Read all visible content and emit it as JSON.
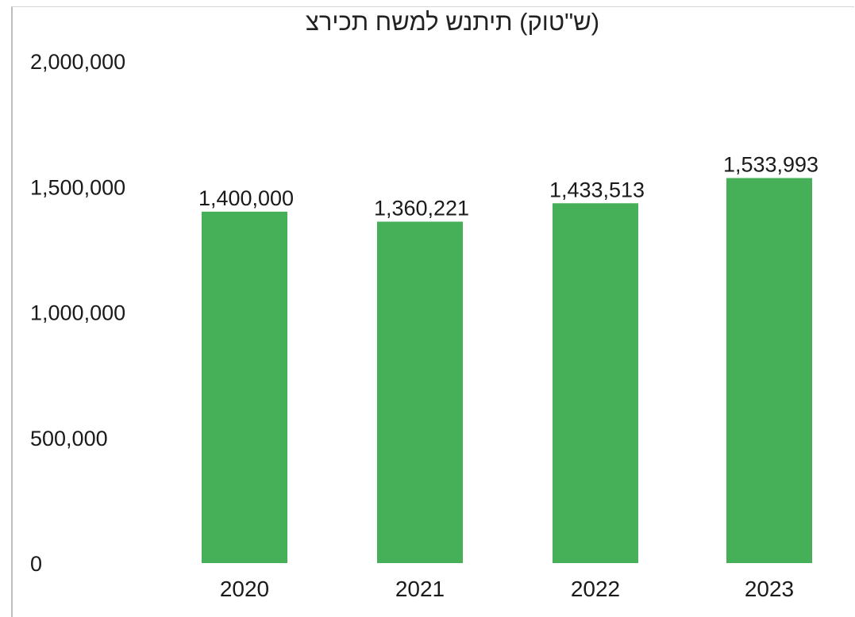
{
  "chart_data": {
    "type": "bar",
    "title": "(ש\"טוק) תיתנש למשח תכירצ",
    "categories": [
      "2020",
      "2021",
      "2022",
      "2023"
    ],
    "series": [
      {
        "values": [
          1400000,
          1360221,
          1433513,
          1533993
        ],
        "color": "#45b058"
      }
    ],
    "data_labels": [
      "1,400,000",
      "1,360,221",
      "1,433,513",
      "1,533,993"
    ],
    "y_ticks": [
      0,
      500000,
      1000000,
      1500000,
      2000000
    ],
    "y_tick_labels": [
      "0",
      "500,000",
      "1,000,000",
      "1,500,000",
      "2,000,000"
    ],
    "ylim": [
      0,
      2000000
    ],
    "grid": false,
    "legend": "none",
    "xlabel": "",
    "ylabel": ""
  }
}
